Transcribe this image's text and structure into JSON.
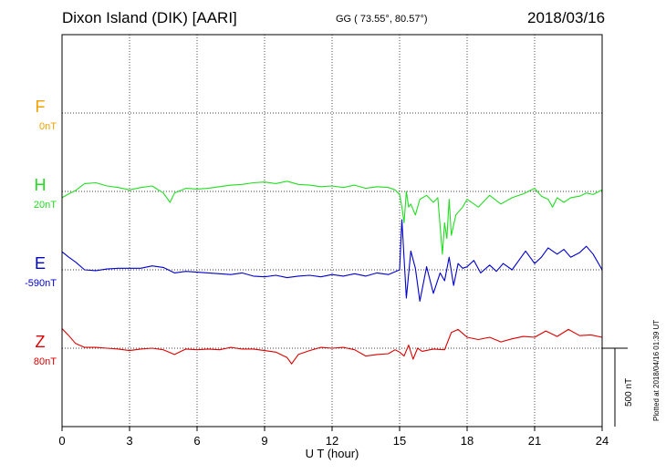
{
  "header": {
    "station": "Dixon Island (DIK)  [AARI]",
    "coordinates": "GG ( 73.55°,  80.57°)",
    "date": "2018/03/16"
  },
  "footer": {
    "plotted": "Plotted at 2018/04/16 01:39 UT"
  },
  "scale_bar_label": "500 nT",
  "colors": {
    "F": "#f0a000",
    "H": "#22dd22",
    "E": "#0000cc",
    "Z": "#dd0000"
  },
  "chart_data": {
    "type": "line",
    "xlabel": "U T (hour)",
    "xlim": [
      0,
      24
    ],
    "xticks": [
      0,
      3,
      6,
      9,
      12,
      15,
      18,
      21,
      24
    ],
    "panels": [
      {
        "name": "F",
        "offset_label": "0nT",
        "color": "#f0a000",
        "x": [],
        "values": []
      },
      {
        "name": "H",
        "offset_label": "20nT",
        "color": "#22dd22",
        "x": [
          0,
          0.3,
          0.6,
          1.0,
          1.5,
          2.0,
          2.5,
          3.0,
          3.5,
          4.0,
          4.5,
          4.8,
          5.0,
          5.5,
          6.0,
          6.5,
          7.0,
          7.5,
          8.0,
          8.5,
          9.0,
          9.5,
          10.0,
          10.5,
          11.0,
          11.5,
          12.0,
          12.5,
          13.0,
          13.5,
          14.0,
          14.5,
          14.8,
          15.0,
          15.1,
          15.2,
          15.3,
          15.4,
          15.5,
          15.7,
          15.9,
          16.2,
          16.5,
          16.7,
          16.9,
          17.0,
          17.1,
          17.2,
          17.3,
          17.5,
          17.8,
          18.0,
          18.5,
          19.0,
          19.5,
          20.0,
          20.5,
          21.0,
          21.3,
          21.6,
          21.8,
          22.0,
          22.3,
          22.6,
          23.0,
          23.3,
          23.6,
          24.0
        ],
        "values": [
          -40,
          -15,
          5,
          50,
          55,
          35,
          25,
          10,
          25,
          35,
          -10,
          -70,
          -10,
          20,
          15,
          20,
          30,
          40,
          45,
          55,
          60,
          50,
          65,
          45,
          40,
          30,
          35,
          25,
          40,
          20,
          30,
          25,
          10,
          -20,
          -100,
          -200,
          0,
          -100,
          -80,
          -150,
          -50,
          -25,
          -70,
          -40,
          -400,
          -200,
          -300,
          -50,
          -280,
          -150,
          -100,
          -50,
          -100,
          -25,
          -80,
          -40,
          -15,
          20,
          -30,
          -50,
          -100,
          -40,
          -70,
          -40,
          -30,
          -10,
          -20,
          10
        ]
      },
      {
        "name": "E",
        "offset_label": "-590nT",
        "color": "#0000cc",
        "x": [
          0,
          0.3,
          0.6,
          1.0,
          1.5,
          2.0,
          2.5,
          3.0,
          3.5,
          4.0,
          4.5,
          5.0,
          5.5,
          6.0,
          6.5,
          7.0,
          7.5,
          8.0,
          8.5,
          9.0,
          9.5,
          10.0,
          10.5,
          11.0,
          11.5,
          12.0,
          12.5,
          13.0,
          13.5,
          14.0,
          14.5,
          15.0,
          15.1,
          15.3,
          15.5,
          15.7,
          15.9,
          16.2,
          16.5,
          16.8,
          17.0,
          17.2,
          17.4,
          17.6,
          17.8,
          18.0,
          18.3,
          18.6,
          19.0,
          19.3,
          19.6,
          20.0,
          20.3,
          20.6,
          21.0,
          21.3,
          21.6,
          22.0,
          22.3,
          22.6,
          23.0,
          23.3,
          23.6,
          24.0
        ],
        "values": [
          115,
          80,
          50,
          0,
          -5,
          5,
          10,
          10,
          10,
          25,
          15,
          -20,
          -10,
          -15,
          -20,
          -25,
          -30,
          -20,
          -40,
          -45,
          -35,
          -50,
          -40,
          -35,
          -45,
          -30,
          -40,
          -25,
          -40,
          -20,
          -30,
          0,
          320,
          -180,
          120,
          10,
          -200,
          20,
          -150,
          -20,
          -70,
          80,
          -100,
          40,
          10,
          20,
          60,
          -20,
          30,
          -10,
          40,
          0,
          60,
          120,
          40,
          80,
          140,
          100,
          130,
          80,
          110,
          150,
          100,
          0
        ]
      },
      {
        "name": "Z",
        "offset_label": "80nT",
        "color": "#dd0000",
        "x": [
          0,
          0.3,
          0.6,
          1.0,
          1.5,
          2.0,
          2.5,
          3.0,
          3.5,
          4.0,
          4.5,
          5.0,
          5.5,
          6.0,
          6.5,
          7.0,
          7.5,
          8.0,
          8.5,
          9.0,
          9.5,
          10.0,
          10.2,
          10.5,
          11.0,
          11.5,
          12.0,
          12.5,
          13.0,
          13.5,
          14.0,
          14.5,
          14.8,
          15.0,
          15.2,
          15.4,
          15.6,
          15.8,
          16.0,
          16.5,
          17.0,
          17.3,
          17.6,
          18.0,
          18.5,
          19.0,
          19.5,
          20.0,
          20.5,
          21.0,
          21.5,
          22.0,
          22.5,
          23.0,
          23.5,
          24.0
        ],
        "values": [
          125,
          80,
          30,
          5,
          5,
          0,
          -5,
          -15,
          -5,
          0,
          -10,
          -40,
          -5,
          -10,
          -5,
          -10,
          5,
          -5,
          -5,
          -15,
          -25,
          -60,
          -100,
          -40,
          -15,
          5,
          0,
          5,
          -10,
          -50,
          -40,
          -35,
          -10,
          -25,
          -50,
          20,
          -70,
          0,
          -20,
          -5,
          -10,
          100,
          120,
          70,
          55,
          70,
          40,
          60,
          75,
          70,
          110,
          75,
          120,
          80,
          85,
          70
        ]
      }
    ],
    "scale_bar_nT": 500
  }
}
